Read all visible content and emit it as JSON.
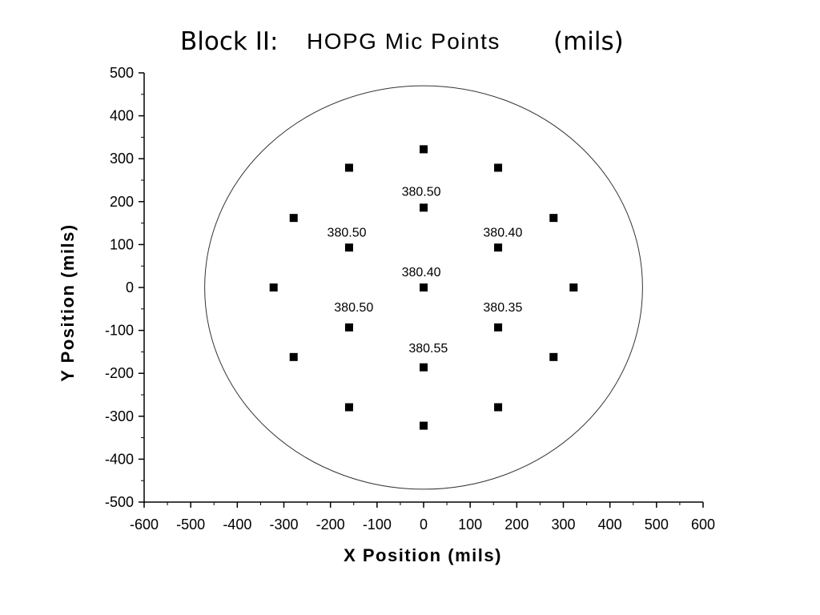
{
  "chart_data": {
    "type": "scatter",
    "title": {
      "part1": "Block II:",
      "part2": "HOPG Mic Points",
      "part3": "(mils)"
    },
    "xlabel": "X Position (mils)",
    "ylabel": "Y Position (mils)",
    "xlim": [
      -600,
      600
    ],
    "ylim": [
      -500,
      500
    ],
    "xticks": [
      -600,
      -500,
      -400,
      -300,
      -200,
      -100,
      0,
      100,
      200,
      300,
      400,
      500,
      600
    ],
    "yticks": [
      500,
      400,
      300,
      200,
      100,
      0,
      -100,
      -200,
      -300,
      -400,
      -500
    ],
    "grid": false,
    "circle": {
      "cx": 0,
      "cy": 0,
      "r": 470
    },
    "points": [
      {
        "x": 0,
        "y": 322
      },
      {
        "x": -160,
        "y": 279
      },
      {
        "x": 160,
        "y": 279
      },
      {
        "x": 0,
        "y": 186
      },
      {
        "x": -279,
        "y": 162
      },
      {
        "x": 279,
        "y": 162
      },
      {
        "x": -160,
        "y": 93
      },
      {
        "x": 160,
        "y": 93
      },
      {
        "x": -322,
        "y": 0
      },
      {
        "x": 0,
        "y": 0
      },
      {
        "x": 322,
        "y": 0
      },
      {
        "x": -160,
        "y": -93
      },
      {
        "x": 160,
        "y": -93
      },
      {
        "x": -279,
        "y": -162
      },
      {
        "x": 279,
        "y": -162
      },
      {
        "x": 0,
        "y": -186
      },
      {
        "x": -160,
        "y": -279
      },
      {
        "x": 160,
        "y": -279
      },
      {
        "x": 0,
        "y": -322
      }
    ],
    "labels": [
      {
        "x": -5,
        "y": 225,
        "text": "380.50"
      },
      {
        "x": -165,
        "y": 130,
        "text": "380.50"
      },
      {
        "x": 170,
        "y": 130,
        "text": "380.40"
      },
      {
        "x": -5,
        "y": 37,
        "text": "380.40"
      },
      {
        "x": -150,
        "y": -45,
        "text": "380.50"
      },
      {
        "x": 170,
        "y": -45,
        "text": "380.35"
      },
      {
        "x": 10,
        "y": -140,
        "text": "380.55"
      }
    ]
  }
}
